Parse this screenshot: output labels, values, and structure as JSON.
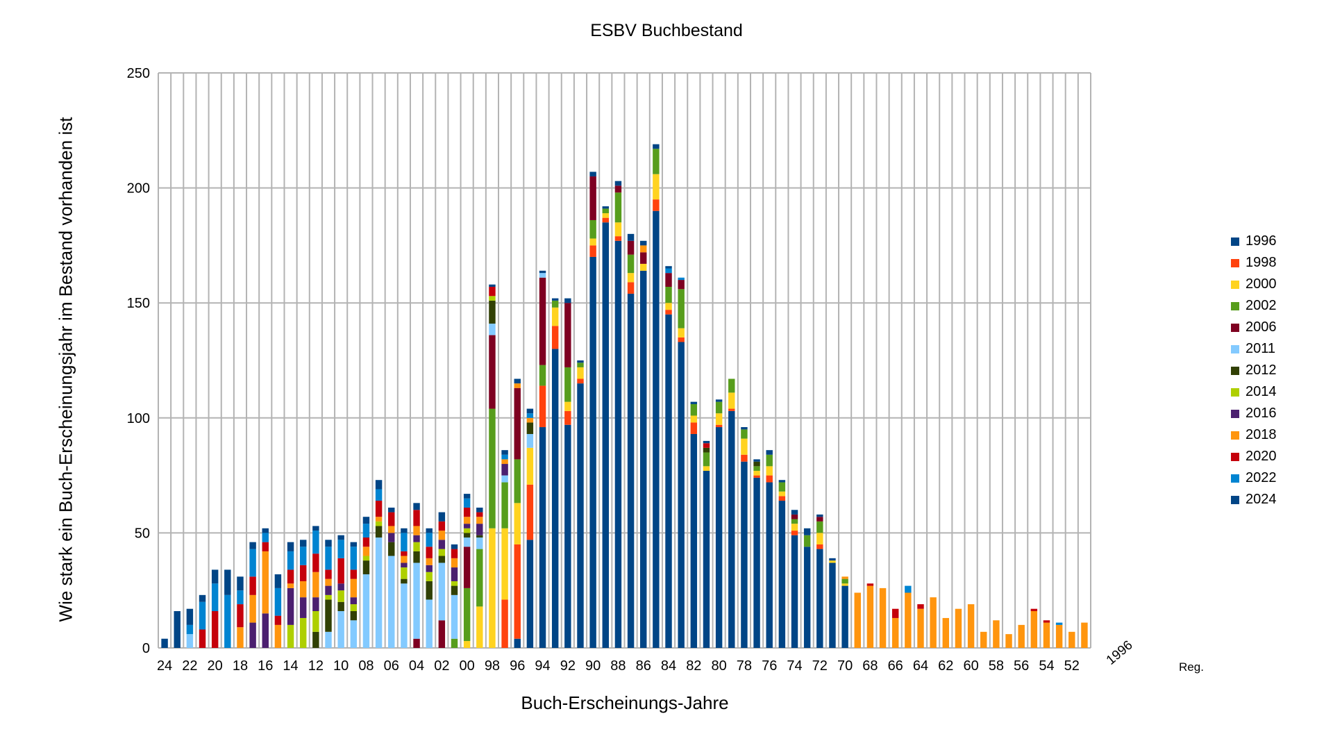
{
  "chart_data": {
    "type": "bar",
    "stacked": true,
    "title": "ESBV Buchbestand",
    "xlabel": "Buch-Erscheinungs-Jahre",
    "ylabel": "Wie stark ein Buch-Erscheinungsjahr im Bestand vorhanden ist",
    "ylim": [
      0,
      250
    ],
    "yticks": [
      0,
      50,
      100,
      150,
      200,
      250
    ],
    "grid": true,
    "legend_position": "right",
    "categories": [
      "24",
      "23",
      "22",
      "21",
      "20",
      "19",
      "18",
      "17",
      "16",
      "15",
      "14",
      "13",
      "12",
      "11",
      "10",
      "09",
      "08",
      "07",
      "06",
      "05",
      "04",
      "03",
      "02",
      "01",
      "00",
      "99",
      "98",
      "97",
      "96",
      "95",
      "94",
      "93",
      "92",
      "91",
      "90",
      "89",
      "88",
      "87",
      "86",
      "85",
      "84",
      "83",
      "82",
      "81",
      "80",
      "79",
      "78",
      "77",
      "76",
      "75",
      "74",
      "73",
      "72",
      "71",
      "70",
      "69",
      "68",
      "67",
      "66",
      "65",
      "64",
      "63",
      "62",
      "61",
      "60",
      "59",
      "58",
      "57",
      "56",
      "55",
      "54",
      "53",
      "52",
      "51"
    ],
    "tick_labels": [
      "24",
      "22",
      "20",
      "18",
      "16",
      "14",
      "12",
      "10",
      "08",
      "06",
      "04",
      "02",
      "00",
      "98",
      "96",
      "94",
      "92",
      "90",
      "88",
      "86",
      "84",
      "82",
      "80",
      "78",
      "76",
      "74",
      "72",
      "70",
      "68",
      "66",
      "64",
      "62",
      "60",
      "58",
      "56",
      "54",
      "52"
    ],
    "extra_labels": [
      "1996",
      "Reg."
    ],
    "series": [
      {
        "name": "1996",
        "color": "#004586",
        "values": [
          0,
          0,
          0,
          0,
          0,
          0,
          0,
          0,
          0,
          0,
          0,
          0,
          0,
          0,
          0,
          0,
          0,
          0,
          0,
          0,
          0,
          0,
          0,
          0,
          0,
          0,
          0,
          0,
          4,
          47,
          96,
          130,
          97,
          115,
          170,
          185,
          177,
          154,
          164,
          190,
          145,
          133,
          93,
          77,
          96,
          103,
          81,
          74,
          72,
          64,
          49,
          44,
          43,
          37,
          27,
          0,
          0,
          0,
          0,
          0,
          0,
          0,
          0,
          0,
          0,
          0,
          0,
          0,
          0,
          0,
          0,
          0,
          0,
          0
        ]
      },
      {
        "name": "1998",
        "color": "#ff420e",
        "values": [
          0,
          0,
          0,
          0,
          0,
          0,
          0,
          0,
          0,
          0,
          0,
          0,
          0,
          0,
          0,
          0,
          0,
          0,
          0,
          0,
          0,
          0,
          0,
          0,
          0,
          0,
          0,
          21,
          41,
          24,
          18,
          10,
          6,
          2,
          5,
          2,
          2,
          5,
          0,
          5,
          2,
          2,
          5,
          0,
          1,
          1,
          3,
          1,
          3,
          2,
          2,
          0,
          2,
          0,
          0,
          0,
          0,
          0,
          0,
          0,
          0,
          0,
          0,
          0,
          0,
          0,
          0,
          0,
          0,
          0,
          0,
          0,
          0,
          0
        ]
      },
      {
        "name": "2000",
        "color": "#ffd320",
        "values": [
          0,
          0,
          0,
          0,
          0,
          0,
          0,
          0,
          0,
          0,
          0,
          0,
          0,
          0,
          0,
          0,
          0,
          0,
          0,
          0,
          0,
          0,
          0,
          0,
          3,
          18,
          52,
          31,
          18,
          16,
          0,
          8,
          4,
          5,
          3,
          2,
          6,
          4,
          3,
          11,
          3,
          4,
          3,
          2,
          5,
          7,
          7,
          2,
          4,
          2,
          3,
          0,
          5,
          1,
          1,
          0,
          0,
          0,
          0,
          0,
          0,
          0,
          0,
          0,
          0,
          0,
          0,
          0,
          0,
          0,
          0,
          0,
          0,
          0
        ]
      },
      {
        "name": "2002",
        "color": "#579d1c",
        "values": [
          0,
          0,
          0,
          0,
          0,
          0,
          0,
          0,
          0,
          0,
          0,
          0,
          0,
          0,
          0,
          0,
          0,
          0,
          0,
          0,
          0,
          0,
          0,
          4,
          23,
          25,
          52,
          20,
          19,
          0,
          9,
          3,
          15,
          2,
          8,
          2,
          13,
          8,
          0,
          11,
          7,
          17,
          5,
          6,
          5,
          6,
          4,
          2,
          5,
          4,
          2,
          5,
          5,
          0,
          2,
          0,
          0,
          0,
          0,
          0,
          0,
          0,
          0,
          0,
          0,
          0,
          0,
          0,
          0,
          0,
          0,
          0,
          0,
          0
        ]
      },
      {
        "name": "2006",
        "color": "#7e0021",
        "values": [
          0,
          0,
          0,
          0,
          0,
          0,
          0,
          0,
          0,
          0,
          0,
          0,
          0,
          0,
          0,
          0,
          0,
          0,
          0,
          0,
          4,
          0,
          12,
          0,
          18,
          0,
          32,
          0,
          31,
          0,
          38,
          0,
          28,
          0,
          19,
          0,
          3,
          6,
          5,
          0,
          6,
          4,
          0,
          0,
          0,
          0,
          0,
          0,
          0,
          0,
          2,
          0,
          2,
          0,
          0,
          0,
          0,
          0,
          0,
          0,
          0,
          0,
          0,
          0,
          0,
          0,
          0,
          0,
          0,
          0,
          0,
          0,
          0,
          0
        ]
      },
      {
        "name": "2011",
        "color": "#83caff",
        "values": [
          0,
          0,
          6,
          0,
          0,
          0,
          0,
          0,
          0,
          0,
          0,
          0,
          0,
          7,
          16,
          12,
          32,
          48,
          40,
          28,
          33,
          21,
          25,
          19,
          4,
          5,
          5,
          3,
          0,
          6,
          2,
          0,
          0,
          0,
          0,
          0,
          0,
          0,
          0,
          0,
          0,
          0,
          0,
          0,
          0,
          0,
          0,
          0,
          0,
          0,
          0,
          0,
          0,
          0,
          0,
          0,
          0,
          0,
          0,
          0,
          0,
          0,
          0,
          0,
          0,
          0,
          0,
          0,
          0,
          0,
          0,
          0,
          0,
          0
        ]
      },
      {
        "name": "2012",
        "color": "#314004",
        "values": [
          0,
          0,
          0,
          0,
          0,
          0,
          0,
          0,
          0,
          0,
          0,
          0,
          7,
          14,
          4,
          4,
          6,
          5,
          6,
          2,
          5,
          8,
          3,
          4,
          2,
          1,
          10,
          0,
          0,
          5,
          0,
          0,
          0,
          0,
          0,
          0,
          0,
          0,
          0,
          0,
          0,
          0,
          0,
          2,
          0,
          0,
          0,
          2,
          0,
          0,
          0,
          0,
          0,
          0,
          0,
          0,
          0,
          0,
          0,
          0,
          0,
          0,
          0,
          0,
          0,
          0,
          0,
          0,
          0,
          0,
          0,
          0,
          0,
          0
        ]
      },
      {
        "name": "2014",
        "color": "#aecf00",
        "values": [
          0,
          0,
          0,
          0,
          0,
          0,
          0,
          0,
          0,
          0,
          10,
          13,
          9,
          2,
          5,
          3,
          2,
          2,
          0,
          5,
          4,
          4,
          3,
          2,
          2,
          0,
          2,
          0,
          0,
          0,
          0,
          0,
          0,
          0,
          0,
          0,
          0,
          0,
          0,
          0,
          0,
          0,
          0,
          0,
          0,
          0,
          0,
          0,
          0,
          0,
          0,
          0,
          0,
          0,
          0,
          0,
          0,
          0,
          0,
          0,
          0,
          0,
          0,
          0,
          0,
          0,
          0,
          0,
          0,
          0,
          0,
          0,
          0,
          0
        ]
      },
      {
        "name": "2016",
        "color": "#4b1f6f",
        "values": [
          0,
          0,
          0,
          0,
          0,
          0,
          0,
          11,
          15,
          0,
          16,
          9,
          6,
          4,
          3,
          3,
          0,
          0,
          4,
          2,
          3,
          3,
          4,
          6,
          2,
          5,
          0,
          5,
          0,
          0,
          0,
          0,
          0,
          0,
          0,
          0,
          0,
          0,
          0,
          0,
          0,
          0,
          0,
          0,
          0,
          0,
          0,
          0,
          0,
          0,
          0,
          0,
          0,
          0,
          0,
          0,
          0,
          0,
          0,
          0,
          0,
          0,
          0,
          0,
          0,
          0,
          0,
          0,
          0,
          0,
          0,
          0,
          0,
          0
        ]
      },
      {
        "name": "2018",
        "color": "#ff950e",
        "values": [
          0,
          0,
          0,
          0,
          0,
          0,
          9,
          12,
          27,
          10,
          2,
          7,
          11,
          3,
          0,
          8,
          4,
          2,
          3,
          3,
          4,
          3,
          4,
          4,
          3,
          3,
          0,
          2,
          2,
          2,
          0,
          0,
          0,
          0,
          0,
          0,
          0,
          0,
          3,
          0,
          0,
          0,
          0,
          0,
          0,
          0,
          0,
          0,
          0,
          0,
          0,
          0,
          0,
          0,
          1,
          24,
          27,
          26,
          13,
          24,
          17,
          22,
          13,
          17,
          19,
          7,
          12,
          6,
          10,
          16,
          11,
          10,
          7,
          11
        ]
      },
      {
        "name": "2020",
        "color": "#c5000b",
        "values": [
          0,
          0,
          0,
          8,
          16,
          0,
          10,
          8,
          4,
          4,
          6,
          7,
          8,
          4,
          11,
          4,
          4,
          7,
          6,
          2,
          7,
          5,
          4,
          4,
          4,
          2,
          4,
          0,
          0,
          0,
          0,
          0,
          0,
          0,
          0,
          0,
          0,
          0,
          0,
          0,
          0,
          0,
          0,
          2,
          0,
          0,
          0,
          0,
          0,
          0,
          0,
          0,
          0,
          0,
          0,
          0,
          1,
          0,
          4,
          0,
          2,
          0,
          0,
          0,
          0,
          0,
          0,
          0,
          0,
          1,
          1,
          0,
          0,
          0
        ]
      },
      {
        "name": "2022",
        "color": "#0084d1",
        "values": [
          0,
          0,
          4,
          12,
          12,
          23,
          6,
          12,
          4,
          12,
          8,
          8,
          10,
          10,
          8,
          10,
          6,
          5,
          0,
          8,
          0,
          6,
          0,
          0,
          4,
          0,
          0,
          2,
          0,
          2,
          0,
          0,
          0,
          0,
          0,
          0,
          0,
          0,
          0,
          0,
          2,
          1,
          0,
          0,
          0,
          0,
          0,
          0,
          0,
          0,
          0,
          0,
          0,
          0,
          0,
          0,
          0,
          0,
          0,
          3,
          0,
          0,
          0,
          0,
          0,
          0,
          0,
          0,
          0,
          0,
          0,
          1,
          0,
          0
        ]
      },
      {
        "name": "2024",
        "color": "#004586",
        "values": [
          4,
          16,
          7,
          3,
          6,
          11,
          6,
          3,
          2,
          6,
          4,
          3,
          2,
          3,
          2,
          2,
          3,
          4,
          2,
          2,
          3,
          2,
          4,
          2,
          2,
          2,
          1,
          2,
          2,
          2,
          1,
          1,
          2,
          1,
          2,
          1,
          2,
          3,
          2,
          2,
          1,
          0,
          1,
          1,
          1,
          0,
          1,
          1,
          2,
          1,
          2,
          3,
          1,
          1,
          0,
          0,
          0,
          0,
          0,
          0,
          0,
          0,
          0,
          0,
          0,
          0,
          0,
          0,
          0,
          0,
          0,
          0,
          0,
          0
        ]
      }
    ]
  }
}
